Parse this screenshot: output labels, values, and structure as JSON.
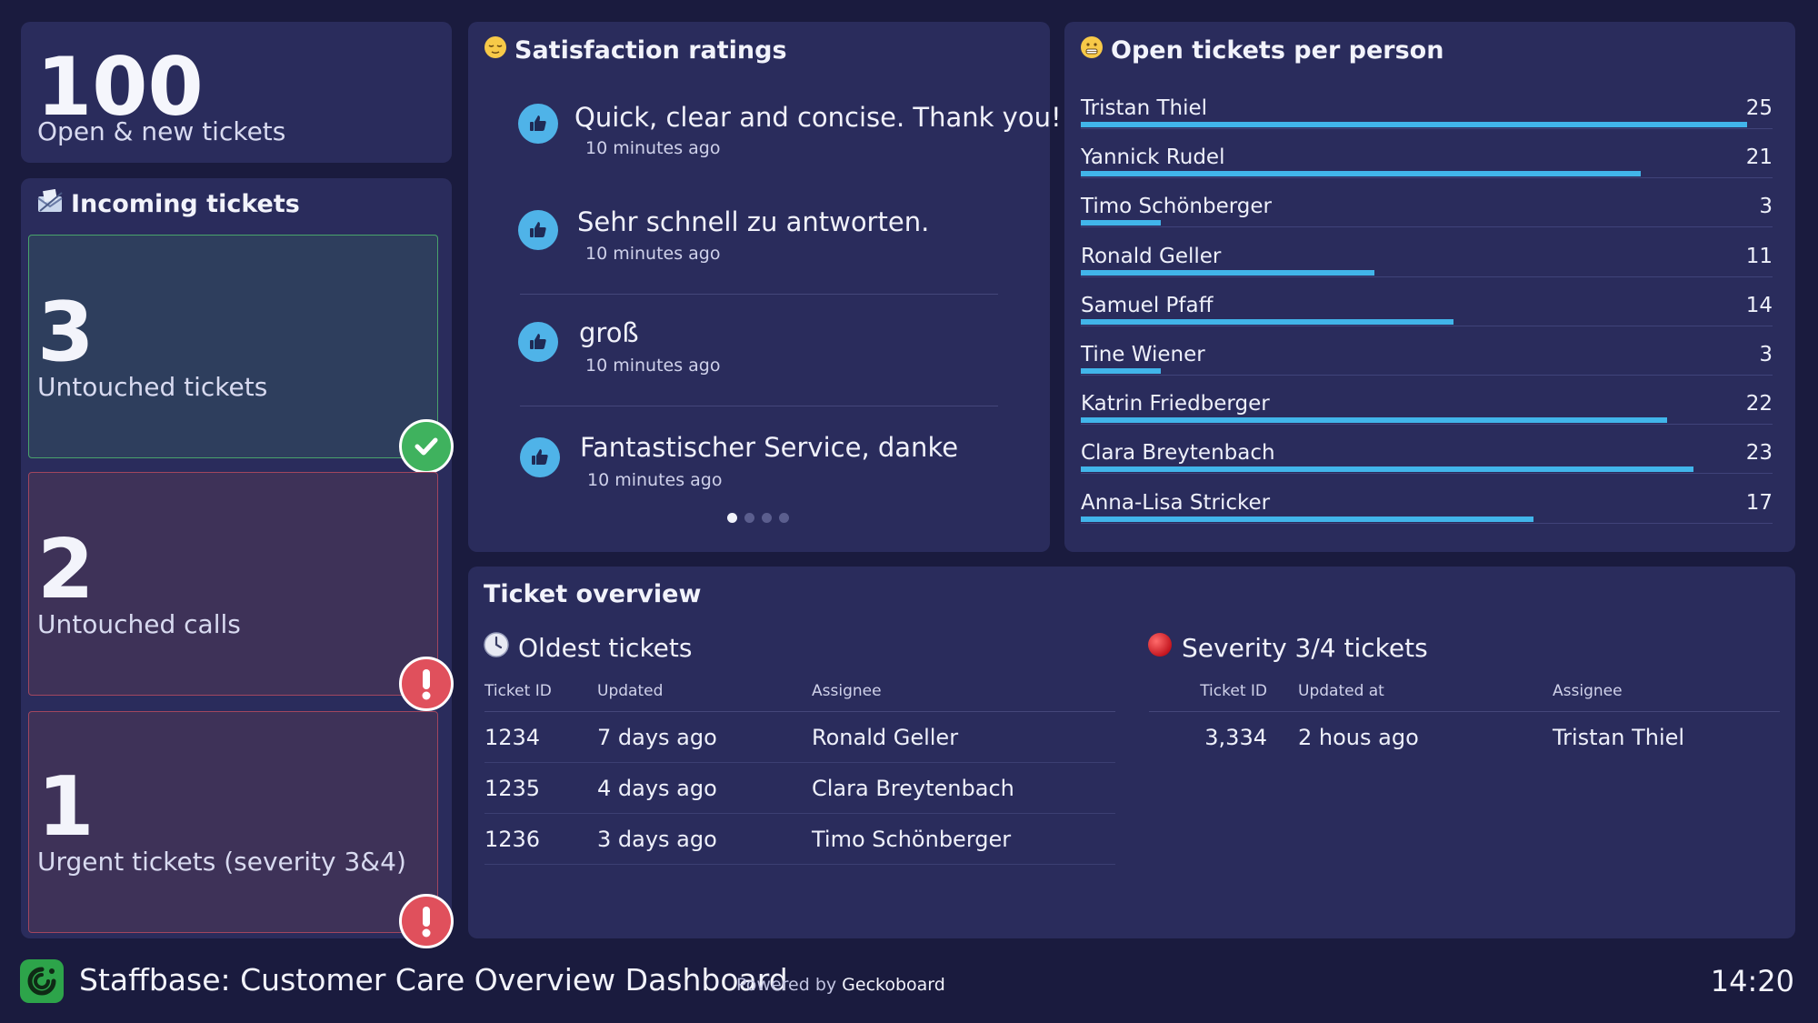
{
  "open_new": {
    "value": "100",
    "label": "Open & new tickets"
  },
  "incoming": {
    "title": "Incoming tickets",
    "icon": "envelope-icon",
    "cards": [
      {
        "value": "3",
        "label": "Untouched tickets",
        "status": "ok",
        "color": "#49a36b"
      },
      {
        "value": "2",
        "label": "Untouched calls",
        "status": "alert",
        "color": "#e0505c"
      },
      {
        "value": "1",
        "label": "Urgent tickets (severity 3&4)",
        "status": "alert",
        "color": "#e0505c"
      }
    ]
  },
  "satisfaction": {
    "title": "Satisfaction ratings",
    "icon": "relieved-face-icon",
    "ratings": [
      {
        "text": "Quick, clear and concise. Thank you!",
        "time": "10 minutes ago",
        "icon": "thumbs-up-icon"
      },
      {
        "text": "Sehr schnell zu antworten.",
        "time": "10 minutes ago",
        "icon": "thumbs-up-icon"
      },
      {
        "text": "groß",
        "time": "10 minutes ago",
        "icon": "thumbs-up-icon"
      },
      {
        "text": "Fantastischer Service, danke",
        "time": "10 minutes ago",
        "icon": "thumbs-up-icon"
      }
    ],
    "pages": 4,
    "active_page": 1
  },
  "per_person": {
    "title": "Open tickets per person",
    "icon": "grimacing-face-icon",
    "max": 25,
    "rows": [
      {
        "name": "Tristan Thiel",
        "value": 25
      },
      {
        "name": "Yannick Rudel",
        "value": 21
      },
      {
        "name": "Timo Schönberger",
        "value": 3
      },
      {
        "name": "Ronald Geller",
        "value": 11
      },
      {
        "name": "Samuel Pfaff",
        "value": 14
      },
      {
        "name": "Tine Wiener",
        "value": 3
      },
      {
        "name": "Katrin Friedberger",
        "value": 22
      },
      {
        "name": "Clara Breytenbach",
        "value": 23
      },
      {
        "name": "Anna-Lisa Stricker",
        "value": 17
      }
    ],
    "bar_color": "#41b5ea"
  },
  "overview": {
    "title": "Ticket overview",
    "oldest": {
      "title": "Oldest tickets",
      "icon": "clock-icon",
      "headers": [
        "Ticket ID",
        "Updated",
        "Assignee"
      ],
      "rows": [
        [
          "1234",
          "7 days ago",
          "Ronald Geller"
        ],
        [
          "1235",
          "4 days ago",
          "Clara Breytenbach"
        ],
        [
          "1236",
          "3 days ago",
          "Timo Schönberger"
        ]
      ]
    },
    "severity": {
      "title": "Severity 3/4 tickets",
      "icon": "red-circle-icon",
      "headers": [
        "Ticket ID",
        "Updated at",
        "Assignee"
      ],
      "rows": [
        [
          "3,334",
          "2 hous ago",
          "Tristan Thiel"
        ]
      ]
    }
  },
  "footer": {
    "title": "Staffbase: Customer Care Overview Dashboard",
    "powered_prefix": "Powered by",
    "powered_brand": "Geckoboard",
    "clock": "14:20"
  },
  "colors": {
    "background": "#1a1b3e",
    "panel": "#2a2c5c",
    "accent": "#41b5ea",
    "ok": "#49a36b",
    "alert": "#e0505c"
  }
}
